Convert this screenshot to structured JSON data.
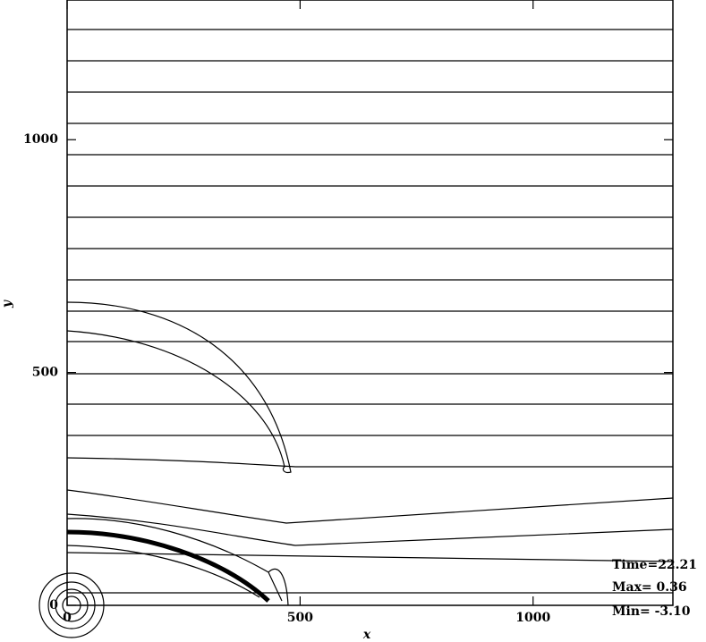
{
  "chart_data": {
    "type": "contour",
    "x_label": "x",
    "y_label": "y",
    "xlim": [
      0,
      1300
    ],
    "ylim": [
      0,
      1300
    ],
    "xticks": [
      0,
      500,
      1000
    ],
    "yticks": [
      0,
      500,
      1000
    ],
    "annotations": [
      "Time=22.21",
      "Max=  0.36",
      "Min= -3.10"
    ]
  }
}
